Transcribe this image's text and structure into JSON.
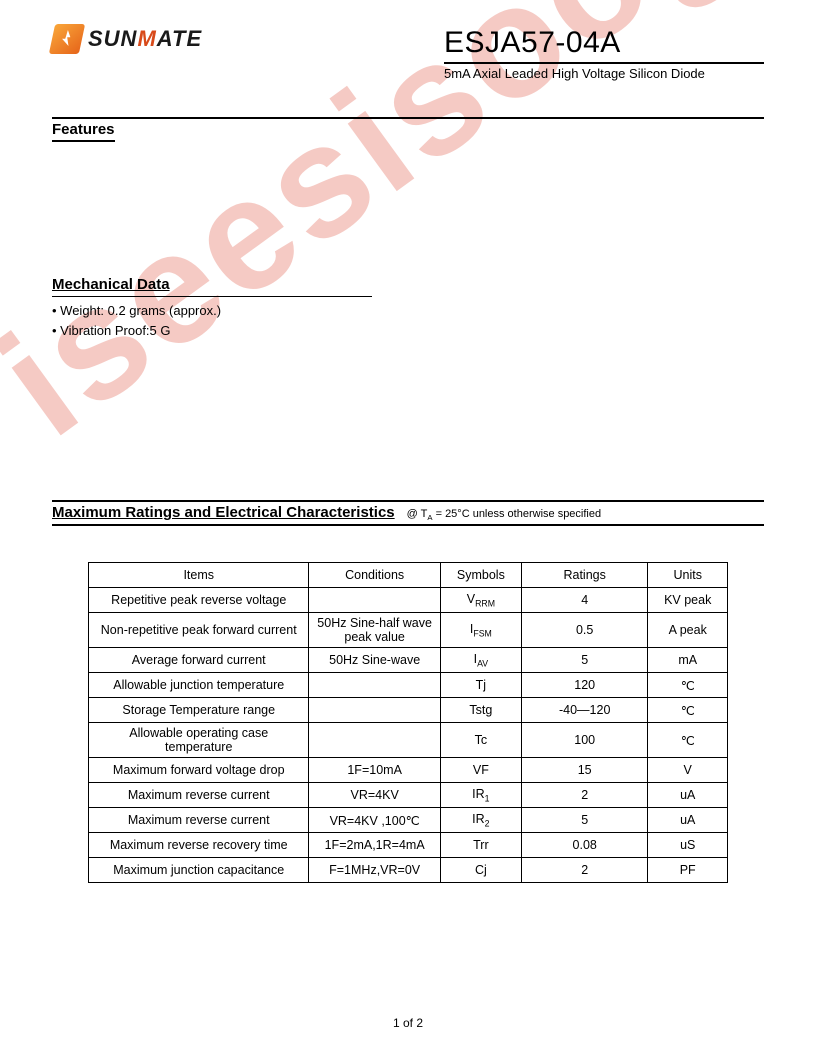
{
  "watermark": "iseesisoog.com",
  "logo": {
    "brand": "SUNMATE"
  },
  "header": {
    "part_number": "ESJA57-04A",
    "description": "5mA Axial Leaded High Voltage Silicon Diode"
  },
  "sections": {
    "features_title": "Features",
    "mechanical_title": "Mechanical Data",
    "mechanical_items": [
      "Weight:  0.2 grams (approx.)",
      "Vibration Proof:5 G"
    ],
    "maxratings_title": "Maximum Ratings and Electrical Characteristics",
    "maxratings_condition_prefix": "@ T",
    "maxratings_condition_sub": "A",
    "maxratings_condition_rest": " = 25°C unless otherwise specified"
  },
  "table": {
    "headers": {
      "items": "Items",
      "conditions": "Conditions",
      "symbols": "Symbols",
      "ratings": "Ratings",
      "units": "Units"
    },
    "rows": [
      {
        "item": "Repetitive peak reverse voltage",
        "cond": "",
        "sym": "V",
        "sym_sub": "RRM",
        "rating": "4",
        "unit": "KV peak"
      },
      {
        "item": "Non-repetitive peak forward current",
        "cond": "50Hz Sine-half wave peak value",
        "sym": "I",
        "sym_sub": "FSM",
        "rating": "0.5",
        "unit": "A peak"
      },
      {
        "item": "Average forward current",
        "cond": "50Hz Sine-wave",
        "sym": "I",
        "sym_sub": "AV",
        "rating": "5",
        "unit": "mA"
      },
      {
        "item": "Allowable junction temperature",
        "cond": "",
        "sym": "Tj",
        "sym_sub": "",
        "rating": "120",
        "unit": "℃"
      },
      {
        "item": "Storage Temperature range",
        "cond": "",
        "sym": "Tstg",
        "sym_sub": "",
        "rating": "-40—120",
        "unit": "℃"
      },
      {
        "item": "Allowable operating case temperature",
        "cond": "",
        "sym": "Tc",
        "sym_sub": "",
        "rating": "100",
        "unit": "℃"
      },
      {
        "item": "Maximum forward voltage drop",
        "cond": "1F=10mA",
        "sym": "VF",
        "sym_sub": "",
        "rating": "15",
        "unit": "V"
      },
      {
        "item": "Maximum reverse current",
        "cond": "VR=4KV",
        "sym": "IR",
        "sym_sub": "1",
        "rating": "2",
        "unit": "uA"
      },
      {
        "item": "Maximum reverse current",
        "cond": "VR=4KV  ,100℃",
        "sym": "IR",
        "sym_sub": "2",
        "rating": "5",
        "unit": "uA"
      },
      {
        "item": "Maximum reverse recovery time",
        "cond": "1F=2mA,1R=4mA",
        "sym": "Trr",
        "sym_sub": "",
        "rating": "0.08",
        "unit": "uS"
      },
      {
        "item": "Maximum junction capacitance",
        "cond": "F=1MHz,VR=0V",
        "sym": "Cj",
        "sym_sub": "",
        "rating": "2",
        "unit": "PF"
      }
    ]
  },
  "footer": {
    "page": "1 of 2"
  }
}
